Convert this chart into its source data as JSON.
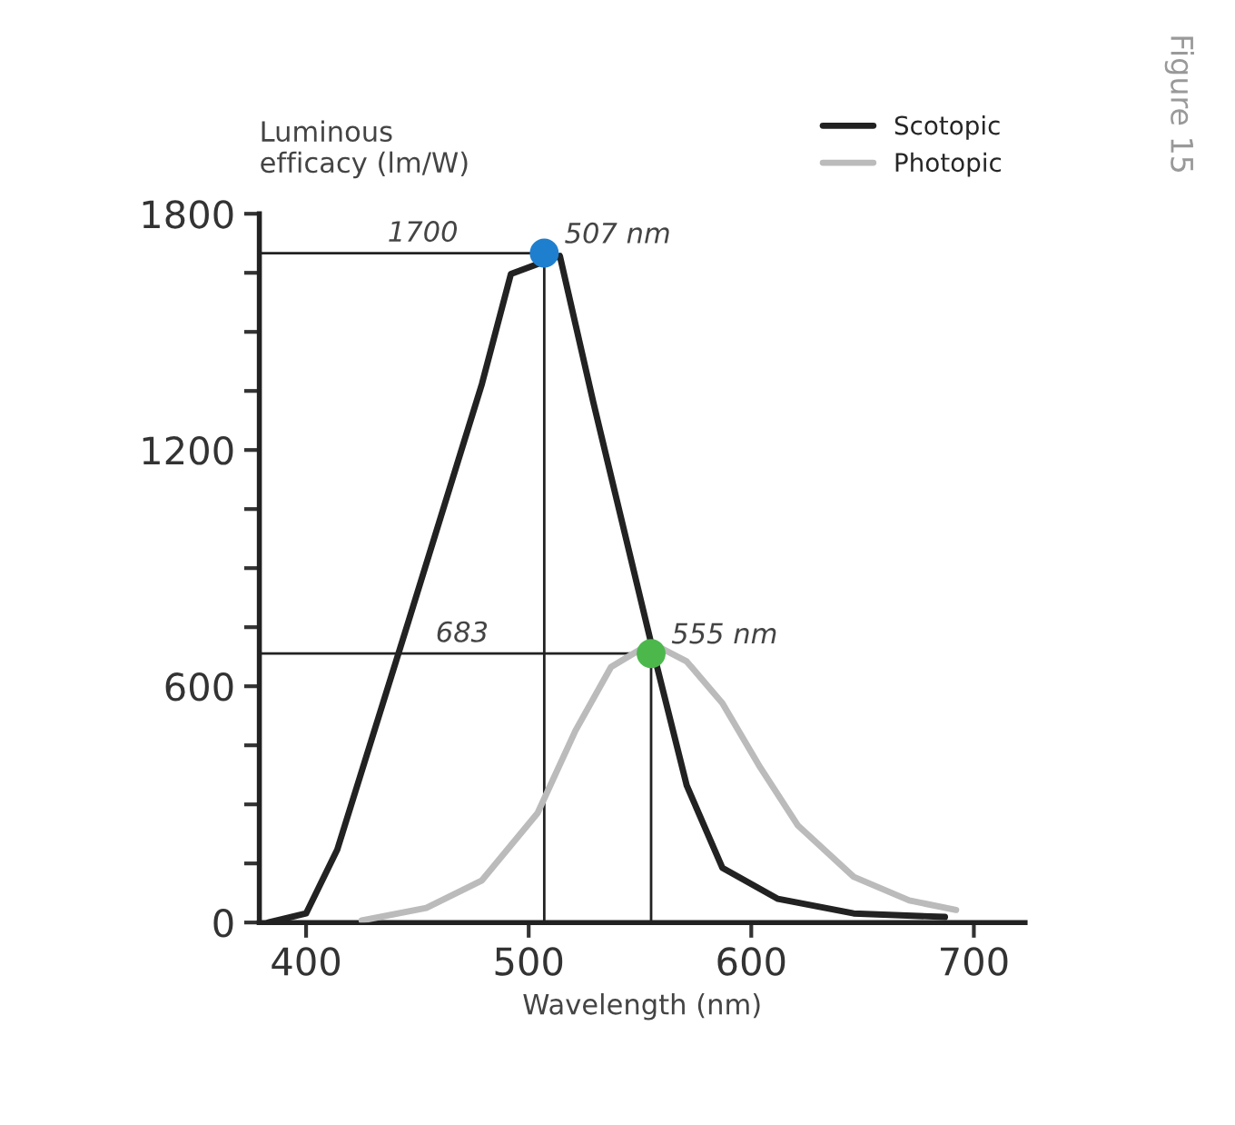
{
  "chart_data": {
    "type": "line",
    "xlabel": "Wavelength (nm)",
    "ylabel": "Luminous\nefficacy (lm/W)",
    "xlim": [
      379,
      723
    ],
    "xticks": [
      400,
      500,
      600,
      700
    ],
    "ylim": [
      0,
      1800
    ],
    "yticks": [
      0,
      {
        "value": 150,
        "label": null
      },
      {
        "value": 300,
        "label": null
      },
      {
        "value": 450,
        "label": null
      },
      600,
      {
        "value": 750,
        "label": null
      },
      {
        "value": 900,
        "label": null
      },
      {
        "value": 1050,
        "label": null
      },
      1200,
      {
        "value": 1350,
        "label": null
      },
      {
        "value": 1500,
        "label": null
      },
      {
        "value": 1650,
        "label": null
      },
      1800
    ],
    "legend": "top right",
    "grid": false,
    "marker": "none",
    "line_style": "solid",
    "series": [
      {
        "name": "Scotopic",
        "color": "#222222",
        "x": [
          383,
          400,
          414,
          446,
          479,
          492,
          514,
          529,
          555,
          571,
          587,
          612,
          646,
          687
        ],
        "values": [
          0,
          23,
          185,
          765,
          1368,
          1647,
          1693,
          1322,
          710,
          348,
          139,
          60,
          23,
          14
        ]
      },
      {
        "name": "Photopic",
        "color": "#bbbbbb",
        "x": [
          425,
          454,
          479,
          504,
          521,
          537,
          555,
          571,
          587,
          604,
          621,
          646,
          671,
          692
        ],
        "values": [
          5,
          37,
          107,
          278,
          487,
          649,
          710,
          663,
          557,
          394,
          246,
          116,
          56,
          32
        ]
      },
      {
        "type": "scatter",
        "marker": "circle",
        "x": [
          507,
          555
        ],
        "values": [
          1700,
          683
        ],
        "colors": [
          "#1f7fcf",
          "#4cb84c"
        ]
      }
    ],
    "ref_lines": [
      {
        "axis": "y",
        "value": 1700,
        "label": "1700",
        "color": "#222222"
      },
      {
        "axis": "y",
        "value": 683,
        "label": "683",
        "color": "#222222"
      },
      {
        "axis": "x",
        "value": 507,
        "color": "#222222"
      },
      {
        "axis": "x",
        "value": 555,
        "color": "#222222"
      }
    ],
    "annotations": [
      {
        "text": "507 nm",
        "x": 507,
        "y": 1700
      },
      {
        "text": "555 nm",
        "x": 555,
        "y": 683
      },
      "Figure 15"
    ]
  }
}
